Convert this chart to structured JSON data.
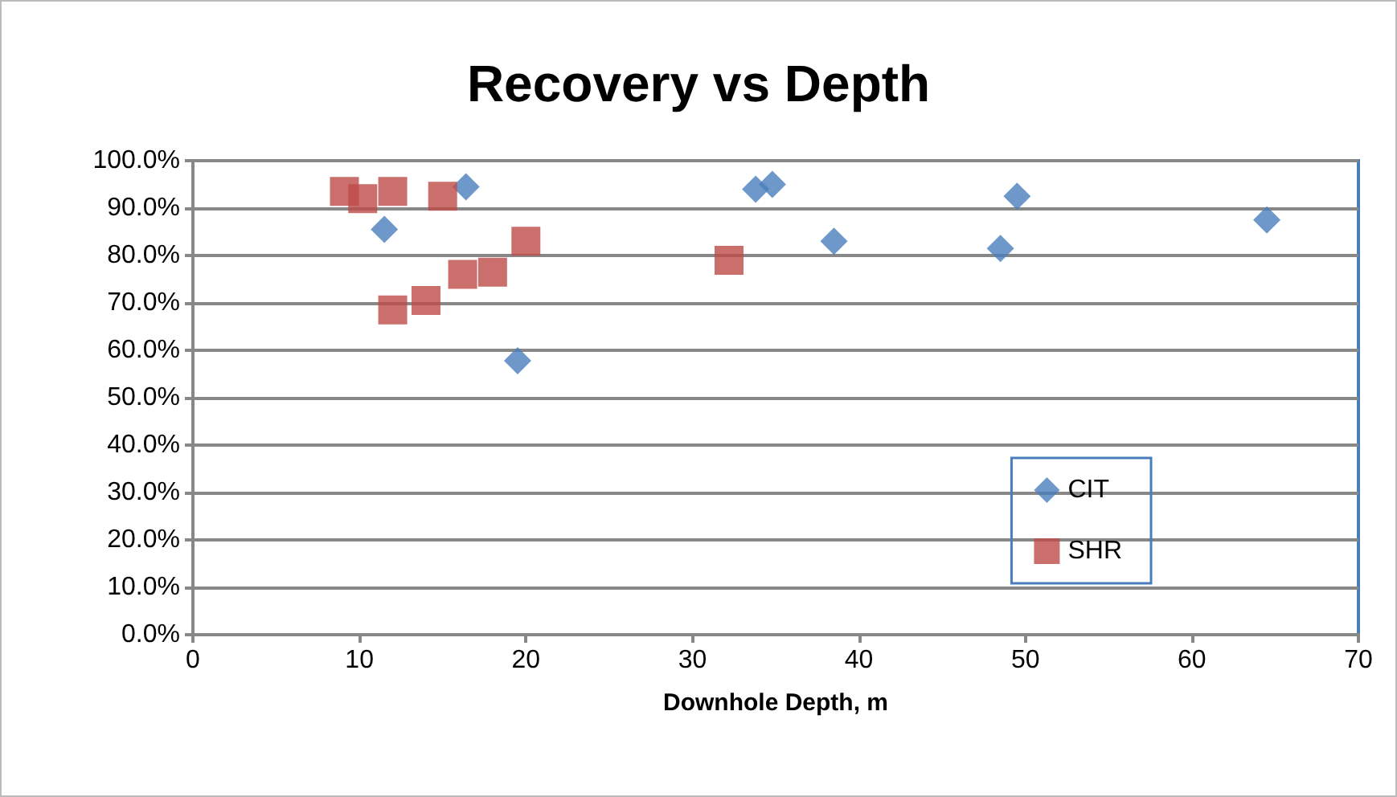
{
  "chart_data": {
    "type": "scatter",
    "title": "Recovery vs Depth",
    "xlabel": "Downhole Depth, m",
    "xlim": [
      0,
      70
    ],
    "xticks": [
      0,
      10,
      20,
      30,
      40,
      50,
      60,
      70
    ],
    "ylim": [
      0,
      100
    ],
    "yticks": [
      {
        "value": 0,
        "label": "0.0%"
      },
      {
        "value": 10,
        "label": "10.0%"
      },
      {
        "value": 20,
        "label": "20.0%"
      },
      {
        "value": 30,
        "label": "30.0%"
      },
      {
        "value": 40,
        "label": "40.0%"
      },
      {
        "value": 50,
        "label": "50.0%"
      },
      {
        "value": 60,
        "label": "60.0%"
      },
      {
        "value": 70,
        "label": "70.0%"
      },
      {
        "value": 80,
        "label": "80.0%"
      },
      {
        "value": 90,
        "label": "90.0%"
      },
      {
        "value": 100,
        "label": "100.0%"
      }
    ],
    "grid": "y",
    "legend": "bottom right",
    "series": [
      {
        "name": "CIT",
        "color": "#4a7ebb",
        "marker": "diamond",
        "x": [
          11.5,
          16.4,
          19.5,
          33.8,
          34.8,
          38.5,
          48.5,
          49.5,
          64.5
        ],
        "values": [
          85.5,
          94.5,
          57.8,
          94,
          95,
          83,
          81.5,
          92.5,
          87.5
        ]
      },
      {
        "name": "SHR",
        "color": "#be4b48",
        "marker": "square",
        "x": [
          9.1,
          10.2,
          12,
          15,
          12,
          14,
          16.2,
          18,
          20,
          32.2
        ],
        "values": [
          93.5,
          92,
          93.5,
          92.5,
          68.5,
          70.5,
          76,
          76.5,
          83,
          79
        ]
      }
    ]
  }
}
